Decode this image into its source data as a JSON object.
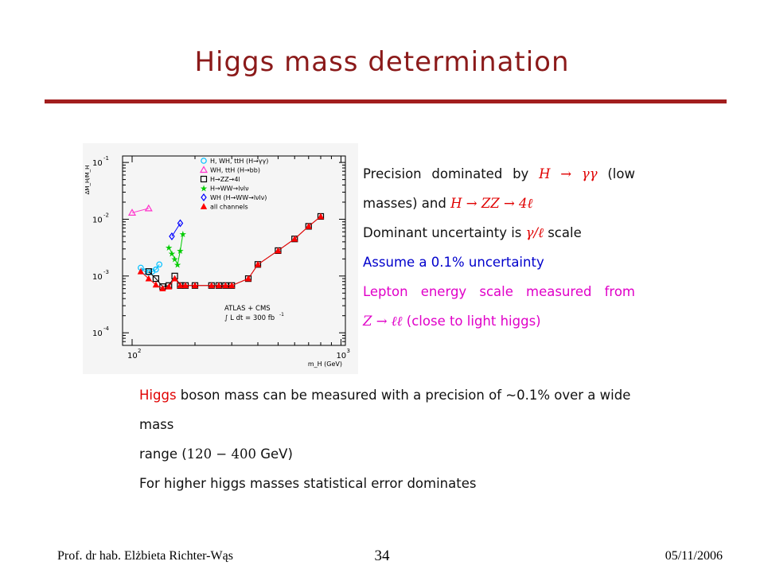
{
  "slide": {
    "title": "Higgs mass determination",
    "colors": {
      "title": "#8B1A1A",
      "rule": "#A21E1E",
      "red": "#E00000",
      "blue": "#0000CC",
      "magenta": "#E000C8"
    }
  },
  "right_panel": {
    "l1_pre": "Precision dominated by",
    "l1_math": "H → γγ",
    "l1_post": "(low",
    "l2_pre": "masses) and",
    "l2_math": "H → ZZ → 4ℓ",
    "l3_pre": "Dominant uncertainty is",
    "l3_math": "γ/ℓ",
    "l3_post": "scale",
    "l4": "Assume a 0.1% uncertainty",
    "l5": "Lepton energy scale measured from",
    "l6_math": "Z → ℓℓ",
    "l6_post": "(close to light higgs)"
  },
  "bottom_panel": {
    "b1_a": "Higgs",
    "b1_b": "boson mass can be measured with a precision of ~0.1% over a wide mass",
    "b2_a": "range (",
    "b2_math": "120 − 400",
    "b2_b": "GeV)",
    "b3": "For higher higgs masses statistical error dominates"
  },
  "footer": {
    "author": "Prof. dr hab. Elżbieta Richter-Wąs",
    "page": "34",
    "date": "05/11/2006"
  },
  "chart_data": {
    "type": "scatter",
    "x_scale": "log",
    "y_scale": "log",
    "xlim": [
      90,
      1050
    ],
    "ylim": [
      6e-05,
      0.13
    ],
    "xlabel": "m_H (GeV)",
    "ylabel": "ΔM_H/M_H",
    "x_tick_labels": [
      {
        "value": 100,
        "base": "10",
        "exp": "2"
      },
      {
        "value": 1000,
        "base": "10",
        "exp": "3"
      }
    ],
    "y_tick_labels": [
      {
        "value": 0.1,
        "base": "10",
        "exp": "-1"
      },
      {
        "value": 0.01,
        "base": "10",
        "exp": "-2"
      },
      {
        "value": 0.001,
        "base": "10",
        "exp": "-3"
      },
      {
        "value": 0.0001,
        "base": "10",
        "exp": "-4"
      }
    ],
    "annotation": [
      "ATLAS + CMS",
      "∫ L dt = 300 fb",
      "-1"
    ],
    "legend_position": "top-right",
    "series": [
      {
        "name": "H, WH, ttH (H→γγ)",
        "marker": "circle",
        "color": "#00BFFF",
        "connect": true,
        "x": [
          110,
          115,
          120,
          125,
          130,
          135
        ],
        "y": [
          0.0014,
          0.0012,
          0.00115,
          0.0012,
          0.0013,
          0.0016
        ]
      },
      {
        "name": "WH, ttH (H→bb)",
        "marker": "triangle-open",
        "color": "#FF33CC",
        "connect": true,
        "x": [
          100,
          120
        ],
        "y": [
          0.013,
          0.0155
        ]
      },
      {
        "name": "H→ZZ→4l",
        "marker": "square-open",
        "color": "#000000",
        "connect": true,
        "x": [
          120,
          130,
          140,
          150,
          160,
          170,
          180,
          200,
          240,
          260,
          280,
          300,
          360,
          400,
          500,
          600,
          700,
          800
        ],
        "y": [
          0.0012,
          0.0009,
          0.00065,
          0.00068,
          0.001,
          0.00068,
          0.00068,
          0.00068,
          0.00068,
          0.00068,
          0.00068,
          0.00068,
          0.0009,
          0.0016,
          0.0028,
          0.0045,
          0.0075,
          0.0112
        ]
      },
      {
        "name": "H→WW→lνlν",
        "marker": "star",
        "color": "#00CC00",
        "connect": true,
        "x": [
          150,
          155,
          160,
          165,
          170,
          175
        ],
        "y": [
          0.0032,
          0.0025,
          0.002,
          0.0016,
          0.0028,
          0.0055
        ]
      },
      {
        "name": "WH (H→WW→lνlν)",
        "marker": "diamond",
        "color": "#0000FF",
        "connect": true,
        "x": [
          155,
          170
        ],
        "y": [
          0.005,
          0.0085
        ]
      },
      {
        "name": "all channels",
        "marker": "triangle-filled",
        "color": "#FF0000",
        "connect": true,
        "x": [
          110,
          120,
          130,
          140,
          150,
          160,
          170,
          180,
          200,
          240,
          260,
          280,
          300,
          360,
          400,
          500,
          600,
          700,
          800
        ],
        "y": [
          0.0012,
          0.0009,
          0.0007,
          0.0006,
          0.00065,
          0.0009,
          0.00068,
          0.00068,
          0.00068,
          0.00068,
          0.00068,
          0.00068,
          0.00068,
          0.0009,
          0.0016,
          0.0028,
          0.0045,
          0.0075,
          0.0112
        ]
      }
    ]
  }
}
